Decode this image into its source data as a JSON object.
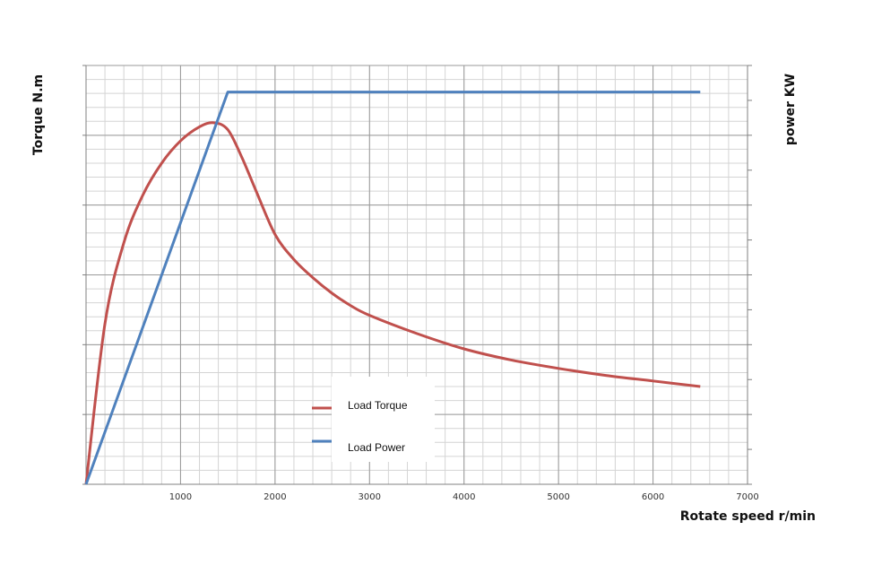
{
  "chart_data": {
    "type": "line",
    "title": "",
    "xlabel": "Rotate speed r/min",
    "ylabel": "Torque N.m",
    "y2label": "power KW",
    "xlim": [
      0,
      7000
    ],
    "ylim": [
      0,
      300
    ],
    "y2lim": [
      0,
      300
    ],
    "x_ticks": [
      1000,
      2000,
      3000,
      4000,
      5000,
      6000,
      7000
    ],
    "y_ticks": [
      0,
      50,
      100,
      150,
      200,
      250,
      300
    ],
    "y2_ticks": [
      0,
      25,
      50,
      75,
      100,
      125,
      150,
      175,
      200,
      225,
      250,
      275,
      300
    ],
    "show_tick_labels_y": false,
    "grid": true,
    "grid_minor_x": 200,
    "grid_minor_y": 10,
    "legend_position": "center-bottom",
    "colors": {
      "torque": "#c0504d",
      "power": "#4f81bd",
      "grid_major": "#9a9a9a",
      "grid_minor": "#d4d4d4"
    },
    "series": [
      {
        "name": "Load Torque",
        "axis": "left",
        "x": [
          0,
          200,
          400,
          600,
          800,
          1000,
          1200,
          1350,
          1500,
          1650,
          1800,
          2000,
          2200,
          2400,
          2600,
          2800,
          3000,
          3500,
          4000,
          4500,
          5000,
          5500,
          6000,
          6500
        ],
        "y": [
          0,
          115,
          173,
          207,
          230,
          246,
          256,
          259,
          254,
          234,
          210,
          179,
          161,
          148,
          137,
          128,
          121,
          108,
          97,
          89,
          83,
          78,
          74,
          70
        ]
      },
      {
        "name": "Load Power",
        "axis": "right",
        "x": [
          0,
          1500,
          6500
        ],
        "y": [
          0,
          281,
          281
        ]
      }
    ]
  }
}
